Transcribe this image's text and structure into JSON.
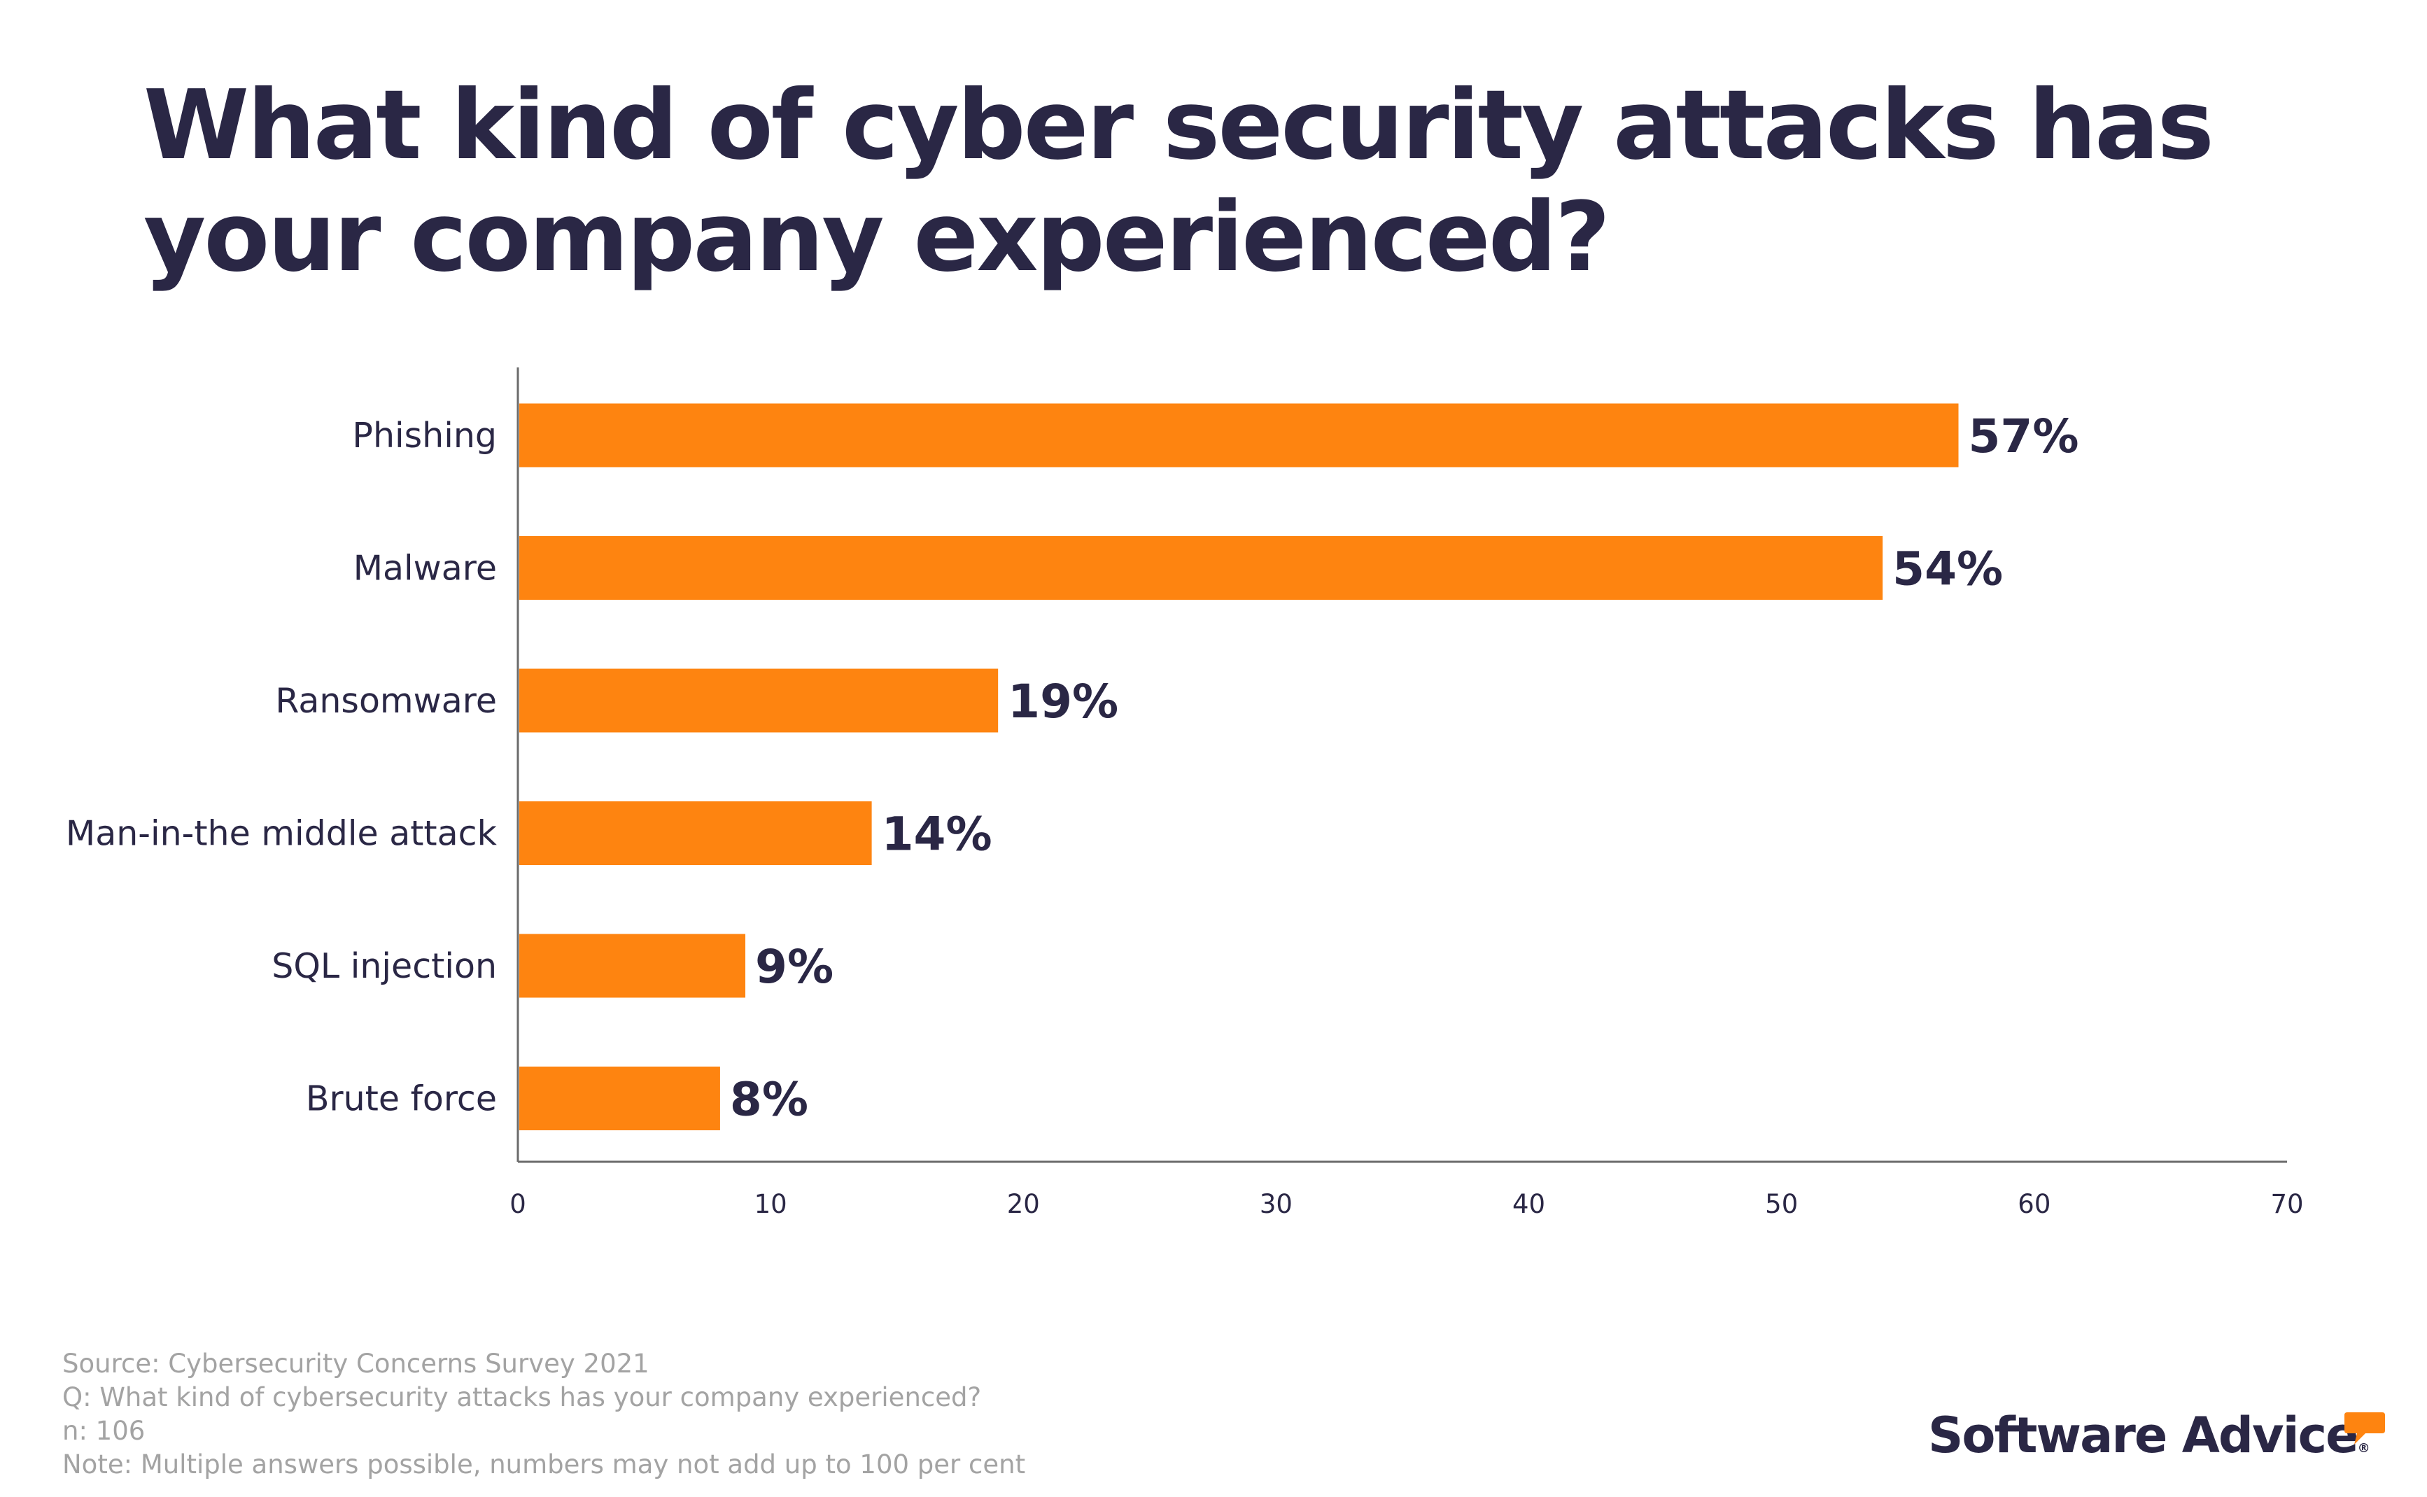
{
  "title": "What kind of cyber security attacks has your company experienced?",
  "chart_data": {
    "type": "bar",
    "orientation": "horizontal",
    "categories": [
      "Phishing",
      "Malware",
      "Ransomware",
      "Man-in-the middle attack",
      "SQL injection",
      "Brute force"
    ],
    "values": [
      57,
      54,
      19,
      14,
      9,
      8
    ],
    "data_labels": [
      "57%",
      "54%",
      "19%",
      "14%",
      "9%",
      "8%"
    ],
    "xlim": [
      0,
      70
    ],
    "xticks": [
      0,
      10,
      20,
      30,
      40,
      50,
      60,
      70
    ],
    "xlabel": "",
    "ylabel": "",
    "grid": false,
    "bar_color": "#fe8410",
    "text_color": "#2a2745",
    "axis_color": "#6b6b6b"
  },
  "footnotes": {
    "source": "Source: Cybersecurity Concerns Survey 2021",
    "question": "Q: What kind of cybersecurity attacks has your company experienced?",
    "sample": "n: 106",
    "note": "Note: Multiple answers possible, numbers may not add up to 100 per cent"
  },
  "logo": {
    "text": "Software Advice",
    "registered": "®",
    "accent_color": "#fe8410"
  }
}
